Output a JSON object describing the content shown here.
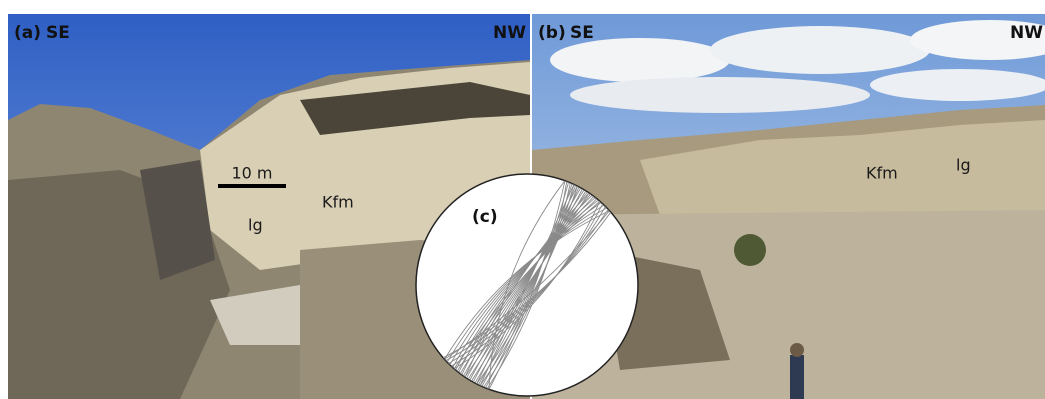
{
  "panel_a": {
    "label": "(a)",
    "left_direction": "SE",
    "right_direction": "NW",
    "scale_bar": "10 m",
    "units": [
      "lg",
      "Kfm"
    ]
  },
  "panel_b": {
    "label": "(b)",
    "left_direction": "SE",
    "right_direction": "NW",
    "units": [
      "Kfm",
      "lg"
    ]
  },
  "panel_c": {
    "label": "(c)"
  }
}
